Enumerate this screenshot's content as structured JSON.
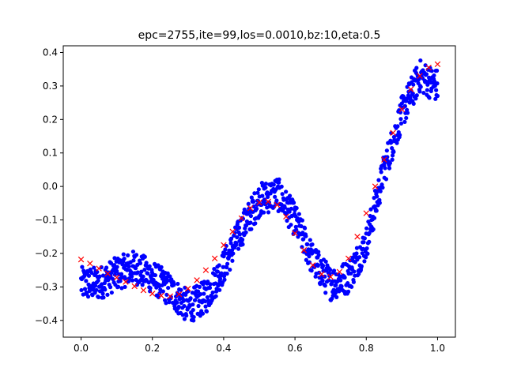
{
  "chart_data": {
    "type": "scatter",
    "title": "epc=2755,ite=99,los=0.0010,bz:10,eta:0.5",
    "xlabel": "",
    "ylabel": "",
    "xlim": [
      -0.05,
      1.05
    ],
    "ylim": [
      -0.45,
      0.42
    ],
    "grid": false,
    "x_ticks": [
      0.0,
      0.2,
      0.4,
      0.6,
      0.8,
      1.0
    ],
    "x_tick_labels": [
      "0.0",
      "0.2",
      "0.4",
      "0.6",
      "0.8",
      "1.0"
    ],
    "y_ticks": [
      -0.4,
      -0.3,
      -0.2,
      -0.1,
      0.0,
      0.1,
      0.2,
      0.3,
      0.4
    ],
    "y_tick_labels": [
      "−0.4",
      "−0.3",
      "−0.2",
      "−0.1",
      "0.0",
      "0.1",
      "0.2",
      "0.3",
      "0.4"
    ],
    "series": [
      {
        "marker": "circle",
        "color": "#0000ff",
        "count": 1000,
        "noise_amplitude": 0.05,
        "curve": {
          "x": [
            0.0,
            0.05,
            0.1,
            0.15,
            0.2,
            0.25,
            0.3,
            0.35,
            0.4,
            0.45,
            0.5,
            0.55,
            0.6,
            0.65,
            0.7,
            0.75,
            0.8,
            0.85,
            0.9,
            0.95,
            1.0
          ],
          "y": [
            -0.29,
            -0.29,
            -0.26,
            -0.24,
            -0.27,
            -0.31,
            -0.36,
            -0.33,
            -0.24,
            -0.13,
            -0.04,
            -0.02,
            -0.1,
            -0.22,
            -0.29,
            -0.27,
            -0.17,
            0.05,
            0.22,
            0.33,
            0.3
          ]
        }
      },
      {
        "marker": "x",
        "color": "#ff0000",
        "x": [
          0.0,
          0.025,
          0.05,
          0.075,
          0.1,
          0.125,
          0.15,
          0.175,
          0.2,
          0.225,
          0.25,
          0.275,
          0.3,
          0.325,
          0.35,
          0.375,
          0.4,
          0.425,
          0.45,
          0.475,
          0.5,
          0.525,
          0.55,
          0.575,
          0.6,
          0.625,
          0.65,
          0.675,
          0.7,
          0.725,
          0.75,
          0.775,
          0.8,
          0.825,
          0.85,
          0.875,
          0.9,
          0.925,
          0.95,
          0.975,
          1.0
        ],
        "y": [
          -0.218,
          -0.23,
          -0.245,
          -0.26,
          -0.272,
          -0.285,
          -0.298,
          -0.31,
          -0.32,
          -0.326,
          -0.328,
          -0.322,
          -0.305,
          -0.28,
          -0.25,
          -0.215,
          -0.175,
          -0.135,
          -0.095,
          -0.065,
          -0.048,
          -0.045,
          -0.055,
          -0.09,
          -0.14,
          -0.19,
          -0.235,
          -0.262,
          -0.27,
          -0.255,
          -0.215,
          -0.15,
          -0.08,
          0.0,
          0.08,
          0.16,
          0.23,
          0.29,
          0.33,
          0.355,
          0.365
        ]
      }
    ]
  }
}
